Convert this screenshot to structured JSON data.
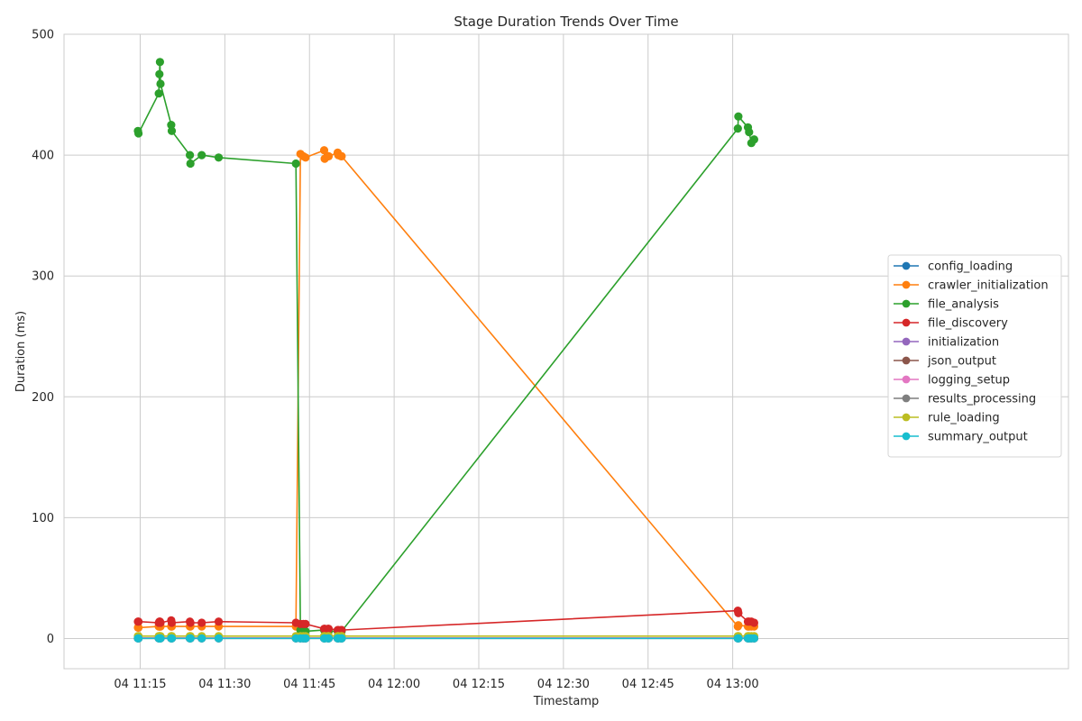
{
  "chart_data": {
    "type": "line",
    "title": "Stage Duration Trends Over Time",
    "xlabel": "Timestamp",
    "ylabel": "Duration (ms)",
    "ylim": [
      -25,
      500
    ],
    "xlim_minutes": [
      1.5,
      179.5
    ],
    "x_base": "04 11:00",
    "x_ticks": [
      {
        "minute": 15,
        "label": "04 11:15"
      },
      {
        "minute": 30,
        "label": "04 11:30"
      },
      {
        "minute": 45,
        "label": "04 11:45"
      },
      {
        "minute": 60,
        "label": "04 12:00"
      },
      {
        "minute": 75,
        "label": "04 12:15"
      },
      {
        "minute": 90,
        "label": "04 12:30"
      },
      {
        "minute": 105,
        "label": "04 12:45"
      },
      {
        "minute": 120,
        "label": "04 13:00"
      }
    ],
    "y_ticks": [
      0,
      100,
      200,
      300,
      400,
      500
    ],
    "grid": true,
    "legend_position": "center-right",
    "series": [
      {
        "name": "config_loading",
        "color": "#1f77b4",
        "x": [
          14.6,
          14.7,
          18.3,
          18.4,
          18.5,
          18.6,
          20.5,
          20.6,
          23.8,
          23.9,
          25.9,
          28.9,
          42.6,
          43.4,
          43.9,
          44.3,
          47.6,
          47.7,
          48.3,
          48.4,
          50.0,
          50.1,
          50.6,
          50.7,
          120.9,
          121.0,
          122.7,
          122.9,
          123.3,
          123.8
        ],
        "y": [
          0.3,
          0.3,
          0.3,
          0.3,
          0.3,
          0.3,
          0.3,
          0.3,
          0.3,
          0.3,
          0.3,
          0.3,
          0.3,
          0.3,
          0.3,
          0.3,
          0.3,
          0.3,
          0.3,
          0.3,
          0.3,
          0.3,
          0.3,
          0.3,
          0.3,
          0.3,
          0.3,
          0.3,
          0.3,
          0.3
        ]
      },
      {
        "name": "crawler_initialization",
        "color": "#ff7f0e",
        "x": [
          14.6,
          14.7,
          18.3,
          18.4,
          18.5,
          18.6,
          20.5,
          20.6,
          23.8,
          23.9,
          25.9,
          28.9,
          42.6,
          43.4,
          43.9,
          44.3,
          47.6,
          47.7,
          48.3,
          48.4,
          50.0,
          50.1,
          50.6,
          50.7,
          120.9,
          121.0,
          122.7,
          122.9,
          123.3,
          123.8
        ],
        "y": [
          9,
          9,
          10,
          10,
          10,
          10,
          10,
          10,
          10,
          10,
          10,
          10,
          10,
          401,
          399,
          398,
          404,
          397,
          399,
          399,
          402,
          400,
          399,
          399,
          10,
          11,
          10,
          10,
          10,
          10
        ]
      },
      {
        "name": "file_analysis",
        "color": "#2ca02c",
        "x": [
          14.6,
          14.7,
          18.3,
          18.4,
          18.5,
          18.6,
          20.5,
          20.6,
          23.8,
          23.9,
          25.9,
          28.9,
          42.6,
          43.4,
          43.9,
          44.3,
          47.6,
          47.7,
          48.3,
          48.4,
          50.0,
          50.1,
          50.6,
          50.7,
          120.9,
          121.0,
          122.7,
          122.9,
          123.3,
          123.8
        ],
        "y": [
          420,
          418,
          451,
          467,
          477,
          459,
          425,
          420,
          400,
          393,
          400,
          398,
          393,
          7,
          6,
          6,
          7,
          7,
          6,
          6,
          6,
          6,
          6,
          6,
          422,
          432,
          423,
          419,
          410,
          413
        ]
      },
      {
        "name": "file_discovery",
        "color": "#d62728",
        "x": [
          14.6,
          14.7,
          18.3,
          18.4,
          18.5,
          18.6,
          20.5,
          20.6,
          23.8,
          23.9,
          25.9,
          28.9,
          42.6,
          43.4,
          43.9,
          44.3,
          47.6,
          47.7,
          48.3,
          48.4,
          50.0,
          50.1,
          50.6,
          50.7,
          120.9,
          121.0,
          122.7,
          122.9,
          123.3,
          123.8
        ],
        "y": [
          14,
          14,
          13,
          14,
          14,
          13,
          15,
          13,
          14,
          13,
          13,
          14,
          13,
          12,
          12,
          12,
          8,
          8,
          8,
          8,
          7,
          7,
          7,
          7,
          23,
          21,
          14,
          14,
          14,
          13
        ]
      },
      {
        "name": "initialization",
        "color": "#9467bd",
        "x": [
          14.6,
          14.7,
          18.3,
          18.4,
          18.5,
          18.6,
          20.5,
          20.6,
          23.8,
          23.9,
          25.9,
          28.9,
          42.6,
          43.4,
          43.9,
          44.3,
          47.6,
          47.7,
          48.3,
          48.4,
          50.0,
          50.1,
          50.6,
          50.7,
          120.9,
          121.0,
          122.7,
          122.9,
          123.3,
          123.8
        ],
        "y": [
          0.3,
          0.3,
          0.3,
          0.3,
          0.3,
          0.3,
          0.3,
          0.3,
          0.3,
          0.3,
          0.3,
          0.3,
          0.3,
          0.3,
          0.3,
          0.3,
          0.3,
          0.3,
          0.3,
          0.3,
          0.3,
          0.3,
          0.3,
          0.3,
          0.3,
          0.3,
          0.3,
          0.3,
          0.3,
          0.3
        ]
      },
      {
        "name": "json_output",
        "color": "#8c564b",
        "x": [
          14.6,
          14.7,
          18.3,
          18.4,
          18.5,
          18.6,
          20.5,
          20.6,
          23.8,
          23.9,
          25.9,
          28.9,
          42.6,
          43.4,
          43.9,
          44.3,
          47.6,
          47.7,
          48.3,
          48.4,
          50.0,
          50.1,
          50.6,
          50.7,
          120.9,
          121.0,
          122.7,
          122.9,
          123.3,
          123.8
        ],
        "y": [
          0.2,
          0.2,
          0.2,
          0.2,
          0.2,
          0.2,
          0.2,
          0.2,
          0.2,
          0.2,
          0.2,
          0.2,
          0.2,
          0.2,
          0.2,
          0.2,
          0.2,
          0.2,
          0.2,
          0.2,
          0.2,
          0.2,
          0.2,
          0.2,
          0.2,
          0.2,
          0.2,
          0.2,
          0.2,
          0.2
        ]
      },
      {
        "name": "logging_setup",
        "color": "#e377c2",
        "x": [
          14.6,
          14.7,
          18.3,
          18.4,
          18.5,
          18.6,
          20.5,
          20.6,
          23.8,
          23.9,
          25.9,
          28.9,
          42.6,
          43.4,
          43.9,
          44.3,
          47.6,
          47.7,
          48.3,
          48.4,
          50.0,
          50.1,
          50.6,
          50.7,
          120.9,
          121.0,
          122.7,
          122.9,
          123.3,
          123.8
        ],
        "y": [
          0.5,
          0.5,
          0.5,
          0.5,
          0.5,
          0.5,
          0.5,
          0.5,
          0.5,
          0.5,
          0.5,
          0.5,
          0.5,
          0.5,
          0.5,
          0.5,
          0.5,
          0.5,
          0.5,
          0.5,
          0.5,
          0.5,
          0.5,
          0.5,
          0.5,
          0.5,
          0.5,
          0.5,
          0.5,
          0.5
        ]
      },
      {
        "name": "results_processing",
        "color": "#7f7f7f",
        "x": [
          14.6,
          14.7,
          18.3,
          18.4,
          18.5,
          18.6,
          20.5,
          20.6,
          23.8,
          23.9,
          25.9,
          28.9,
          42.6,
          43.4,
          43.9,
          44.3,
          47.6,
          47.7,
          48.3,
          48.4,
          50.0,
          50.1,
          50.6,
          50.7,
          120.9,
          121.0,
          122.7,
          122.9,
          123.3,
          123.8
        ],
        "y": [
          0.1,
          0.1,
          0.1,
          0.1,
          0.1,
          0.1,
          0.1,
          0.1,
          0.1,
          0.1,
          0.1,
          0.1,
          0.1,
          0.1,
          0.1,
          0.1,
          0.1,
          0.1,
          0.1,
          0.1,
          0.1,
          0.1,
          0.1,
          0.1,
          0.1,
          0.1,
          0.1,
          0.1,
          0.1,
          0.1
        ]
      },
      {
        "name": "rule_loading",
        "color": "#bcbd22",
        "x": [
          14.6,
          14.7,
          18.3,
          18.4,
          18.5,
          18.6,
          20.5,
          20.6,
          23.8,
          23.9,
          25.9,
          28.9,
          42.6,
          43.4,
          43.9,
          44.3,
          47.6,
          47.7,
          48.3,
          48.4,
          50.0,
          50.1,
          50.6,
          50.7,
          120.9,
          121.0,
          122.7,
          122.9,
          123.3,
          123.8
        ],
        "y": [
          2,
          2,
          2,
          2,
          2,
          2,
          2,
          2,
          2,
          2,
          2,
          2,
          2,
          2,
          2,
          2,
          2,
          2,
          2,
          2,
          2,
          2,
          2,
          2,
          2,
          2,
          2,
          2,
          2,
          2
        ]
      },
      {
        "name": "summary_output",
        "color": "#17becf",
        "x": [
          14.6,
          14.7,
          18.3,
          18.4,
          18.5,
          18.6,
          20.5,
          20.6,
          23.8,
          23.9,
          25.9,
          28.9,
          42.6,
          43.4,
          43.9,
          44.3,
          47.6,
          47.7,
          48.3,
          48.4,
          50.0,
          50.1,
          50.6,
          50.7,
          120.9,
          121.0,
          122.7,
          122.9,
          123.3,
          123.8
        ],
        "y": [
          0.1,
          0.1,
          0.1,
          0.1,
          0.1,
          0.1,
          0.1,
          0.1,
          0.1,
          0.1,
          0.1,
          0.1,
          0.1,
          0.1,
          0.1,
          0.1,
          0.1,
          0.1,
          0.1,
          0.1,
          0.1,
          0.1,
          0.1,
          0.1,
          0.1,
          0.1,
          0.1,
          0.1,
          0.1,
          0.1
        ]
      }
    ]
  }
}
